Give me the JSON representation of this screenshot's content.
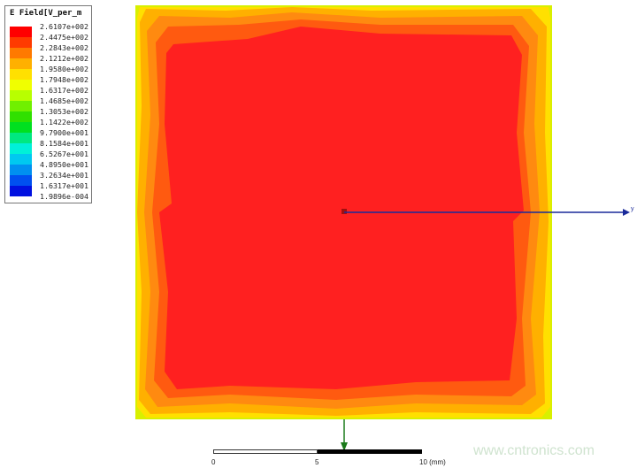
{
  "legend": {
    "title": "E Field[V_per_m",
    "values": [
      "2.6107e+002",
      "2.4475e+002",
      "2.2843e+002",
      "2.1212e+002",
      "1.9580e+002",
      "1.7948e+002",
      "1.6317e+002",
      "1.4685e+002",
      "1.3053e+002",
      "1.1422e+002",
      "9.7900e+001",
      "8.1584e+001",
      "6.5267e+001",
      "4.8950e+001",
      "3.2634e+001",
      "1.6317e+001",
      "1.9896e-004"
    ],
    "colors": [
      "#ff0000",
      "#ff3a00",
      "#ff7a00",
      "#ffb000",
      "#ffe000",
      "#f0ff00",
      "#b8ff00",
      "#70f000",
      "#30e000",
      "#00e020",
      "#00e880",
      "#00f0d8",
      "#00c8f0",
      "#0090f0",
      "#0050f0",
      "#0010e0"
    ]
  },
  "axes": {
    "y_label": "y",
    "y_color": "#1a2a9a",
    "x_color": "#1a7a1a"
  },
  "scale_bar": {
    "ticks": [
      "0",
      "5",
      "10 (mm)"
    ]
  },
  "watermark": "www.cntronics.com"
}
